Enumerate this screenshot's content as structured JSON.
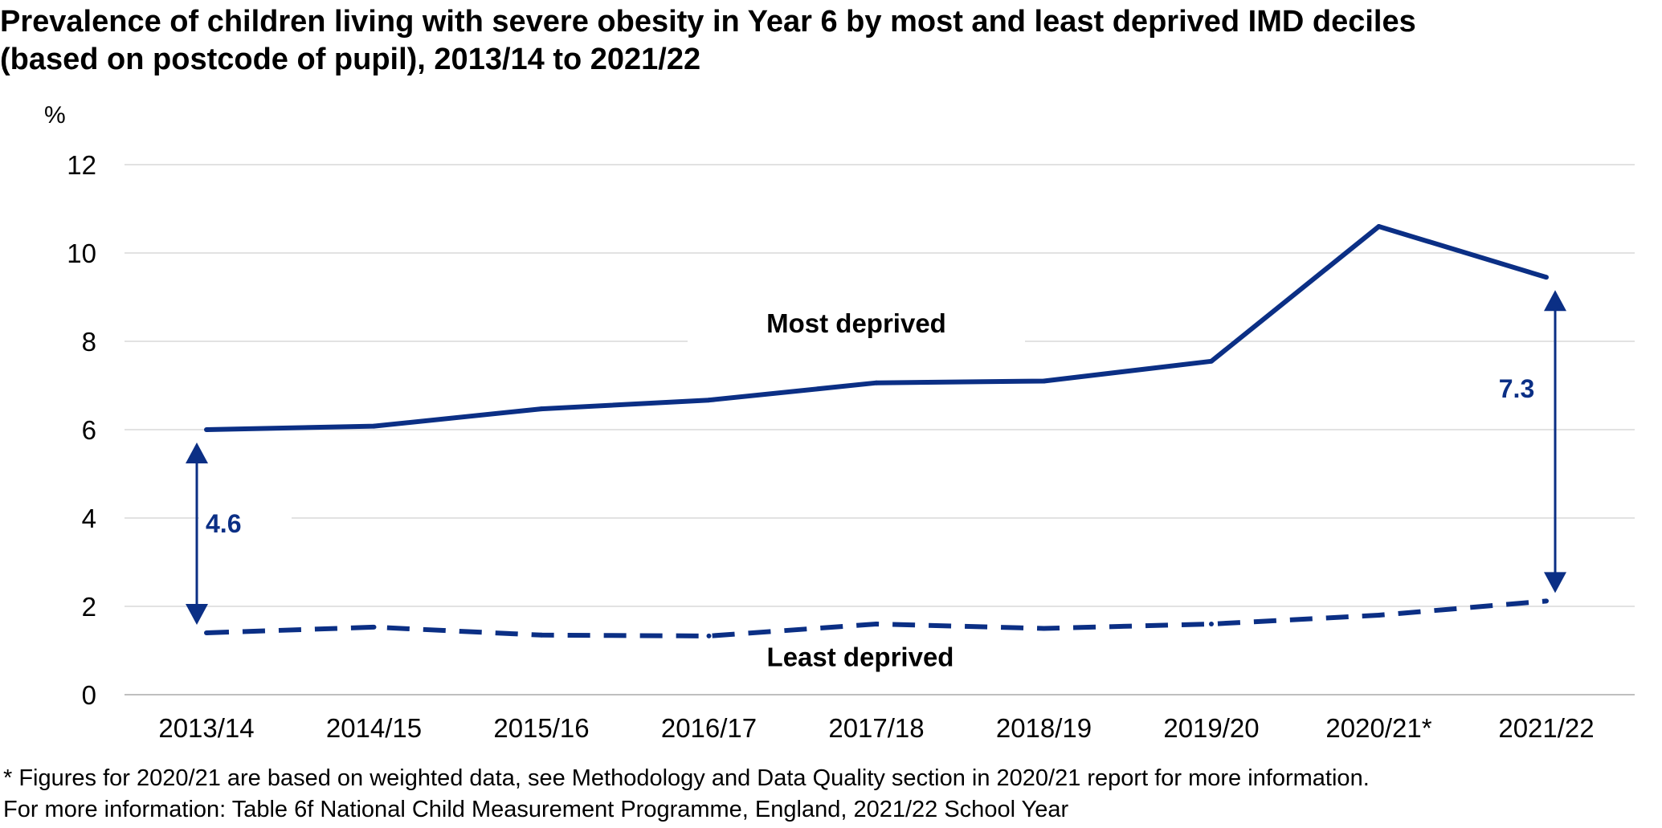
{
  "colors": {
    "series": "#0b2f85",
    "grid": "#d9d9d9",
    "axis": "#bfbfbf"
  },
  "chart_data": {
    "type": "line",
    "title": [
      "Prevalence of children living with severe obesity in Year 6 by most and least deprived IMD deciles",
      "(based on postcode of pupil), 2013/14 to 2021/22"
    ],
    "ylabel": "%",
    "ylim": [
      0,
      12
    ],
    "yticks": [
      "0",
      "2",
      "4",
      "6",
      "8",
      "10",
      "12"
    ],
    "grid": true,
    "categories": [
      "2013/14",
      "2014/15",
      "2015/16",
      "2016/17",
      "2017/18",
      "2018/19",
      "2019/20",
      "2020/21*",
      "2021/22"
    ],
    "series": [
      {
        "name": "Most deprived",
        "line_style": "solid",
        "values": [
          6.0,
          6.08,
          6.47,
          6.67,
          7.06,
          7.1,
          7.55,
          10.6,
          9.45
        ]
      },
      {
        "name": "Least deprived",
        "line_style": "dashed",
        "values": [
          1.4,
          1.53,
          1.35,
          1.33,
          1.6,
          1.5,
          1.6,
          1.8,
          2.12
        ]
      }
    ],
    "annotations": [
      {
        "label": "4.6",
        "category": "2013/14",
        "from": 1.4,
        "to": 6.0
      },
      {
        "label": "7.3",
        "category": "2021/22",
        "from": 2.12,
        "to": 9.45
      }
    ]
  },
  "footnotes": [
    "* Figures for 2020/21 are based on weighted data, see Methodology and Data Quality section in 2020/21 report for more information.",
    "For more information: Table 6f National Child Measurement Programme, England, 2021/22 School Year"
  ]
}
